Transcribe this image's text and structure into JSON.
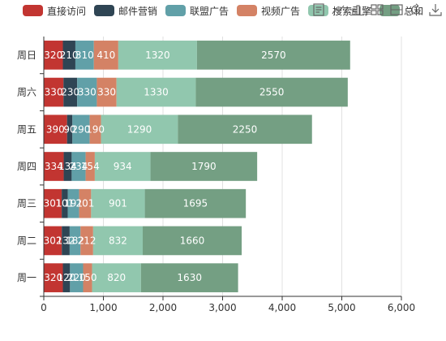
{
  "chart_data": {
    "type": "bar",
    "orientation": "horizontal",
    "stacked": true,
    "categories": [
      "周一",
      "周二",
      "周三",
      "周四",
      "周五",
      "周六",
      "周日"
    ],
    "series": [
      {
        "name": "直接访问",
        "color": "#c23531",
        "values": [
          320,
          302,
          301,
          334,
          390,
          330,
          320
        ]
      },
      {
        "name": "邮件营销",
        "color": "#2f4554",
        "values": [
          120,
          132,
          101,
          134,
          90,
          230,
          210
        ]
      },
      {
        "name": "联盟广告",
        "color": "#61a0a8",
        "values": [
          220,
          182,
          191,
          234,
          290,
          330,
          310
        ]
      },
      {
        "name": "视频广告",
        "color": "#d48265",
        "values": [
          150,
          212,
          201,
          154,
          190,
          330,
          410
        ]
      },
      {
        "name": "搜索引擎",
        "color": "#91c7ae",
        "values": [
          820,
          832,
          901,
          934,
          1290,
          1330,
          1320
        ]
      },
      {
        "name": "总和",
        "color": "#749f83",
        "values": [
          1630,
          1660,
          1695,
          1790,
          2250,
          2550,
          2570
        ]
      }
    ],
    "xlim": [
      0,
      6000
    ],
    "xticks": [
      0,
      1000,
      2000,
      3000,
      4000,
      5000,
      6000
    ],
    "xtick_labels": [
      "0",
      "1,000",
      "2,000",
      "3,000",
      "4,000",
      "5,000",
      "6,000"
    ],
    "grid": true,
    "legend_position": "top"
  },
  "toolbox": [
    {
      "icon": "data-view-icon"
    },
    {
      "icon": "magic-line-icon"
    },
    {
      "icon": "magic-bar-icon"
    },
    {
      "icon": "magic-stack-icon"
    },
    {
      "icon": "magic-tiled-icon"
    },
    {
      "icon": "restore-icon"
    },
    {
      "icon": "save-image-icon"
    }
  ]
}
